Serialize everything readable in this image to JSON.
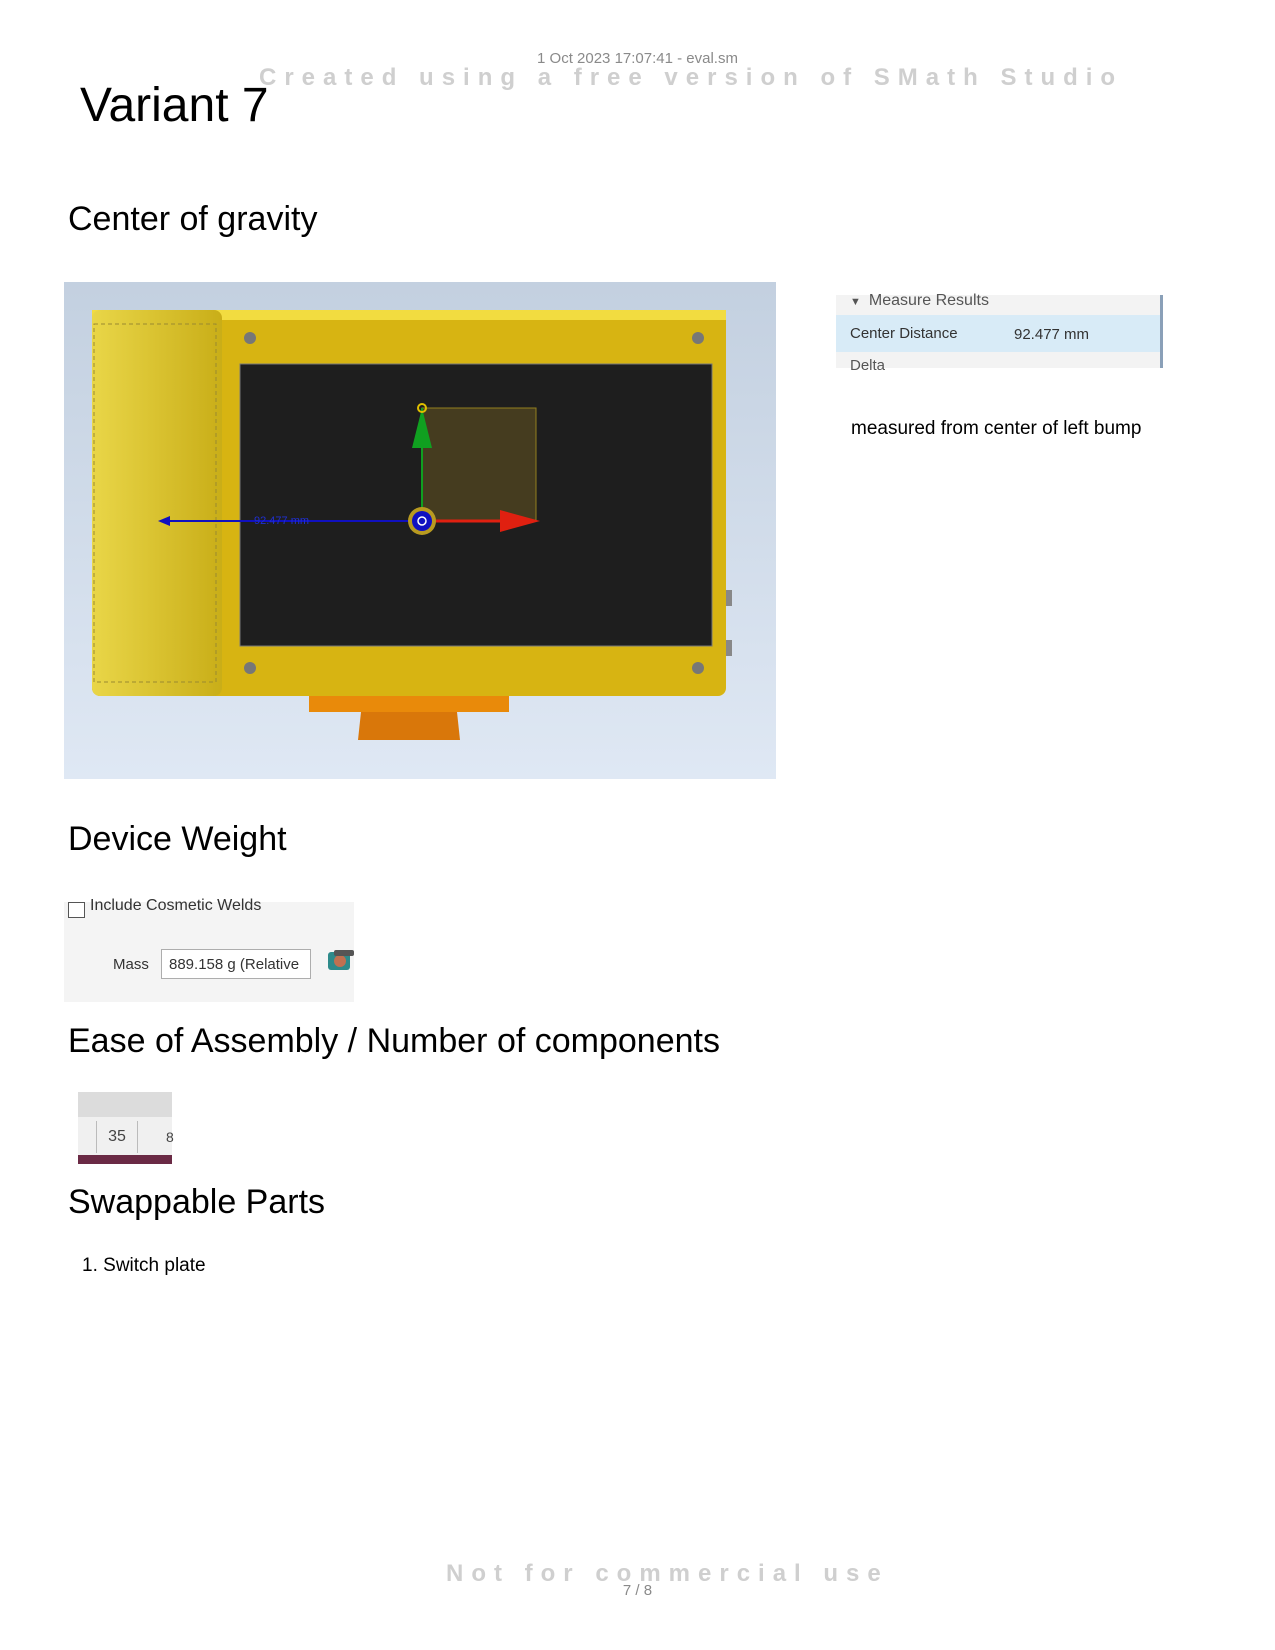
{
  "header": {
    "meta": "1 Oct 2023 17:07:41 - eval.sm",
    "watermark_top": "Created using a free version of SMath Studio"
  },
  "title": "Variant 7",
  "sections": {
    "cog": {
      "heading": "Center of gravity"
    },
    "weight": {
      "heading": "Device Weight"
    },
    "assembly": {
      "heading": "Ease of Assembly / Number of components"
    },
    "swappable": {
      "heading": "Swappable Parts"
    }
  },
  "cad_view": {
    "dimension_label": "92.477 mm",
    "axes_colors": {
      "x": "#e02010",
      "y": "#10a020",
      "z": "#1010c0"
    },
    "body_color": "#e2c21a"
  },
  "measure_results": {
    "header": "Measure Results",
    "row_label": "Center Distance",
    "row_value": "92.477 mm",
    "next_row": "Delta",
    "note": "measured from center of left bump"
  },
  "mass_panel": {
    "checkbox_label": "Include Cosmetic Welds",
    "mass_label": "Mass",
    "mass_value": "889.158 g (Relative"
  },
  "components_panel": {
    "count": "35",
    "next_cell": "8"
  },
  "swappable_list": [
    {
      "number": "1.",
      "text": "Switch plate"
    }
  ],
  "footer": {
    "watermark_bottom": "Not for commercial use",
    "page": "7 / 8"
  }
}
